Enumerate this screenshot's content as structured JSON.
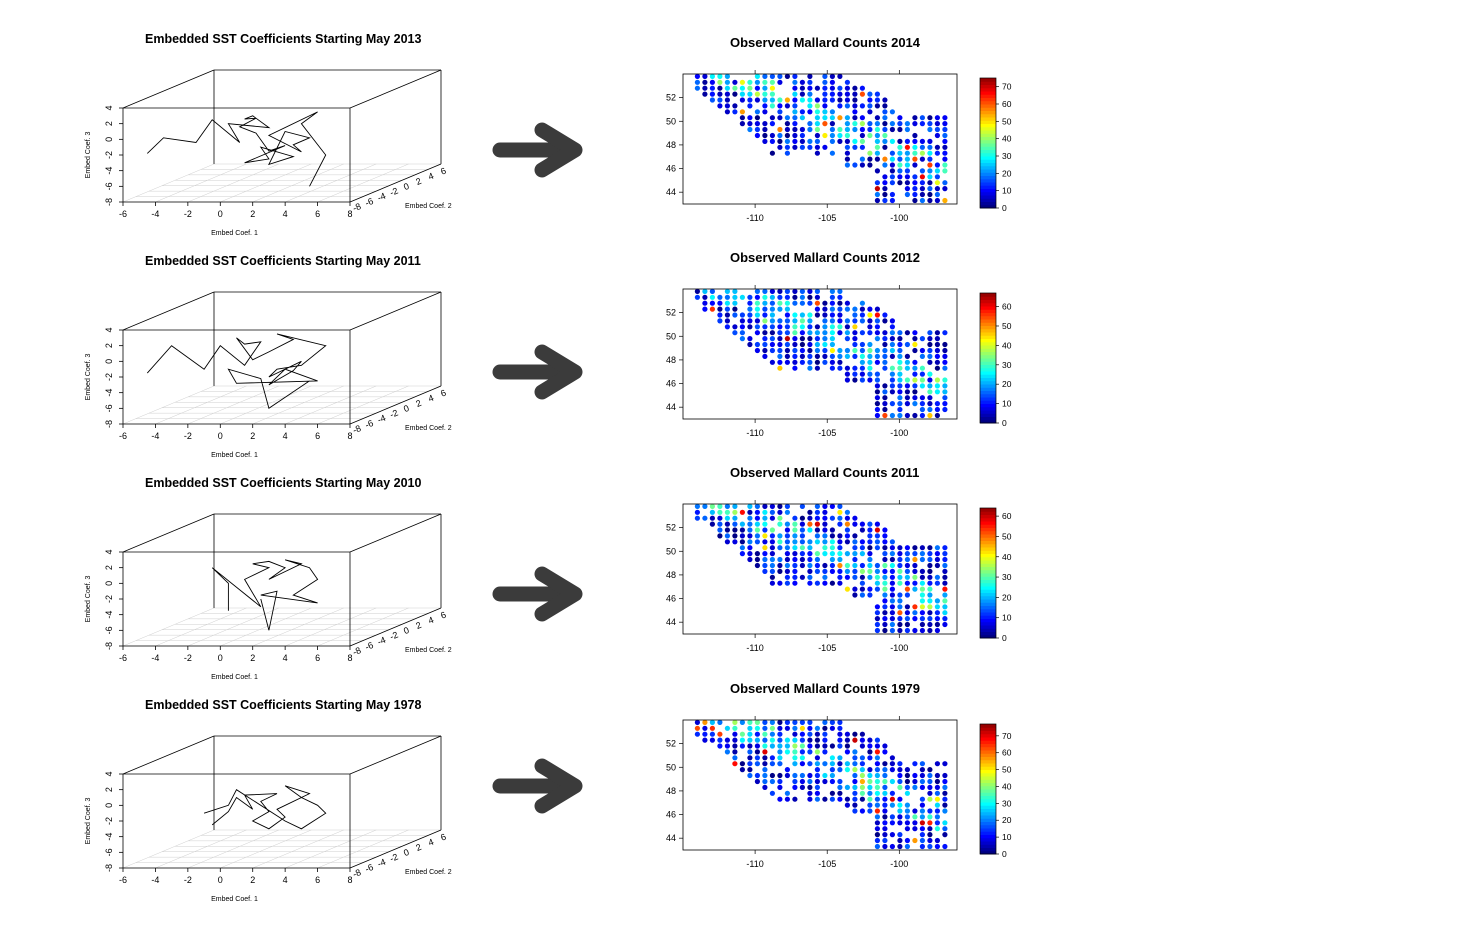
{
  "panels": [
    {
      "embed_title": "Embedded SST Coefficients Starting May  2013",
      "map_title": "Observed Mallard Counts  2014",
      "colorbar_ticks": [
        "0",
        "10",
        "20",
        "30",
        "40",
        "50",
        "60",
        "70"
      ],
      "colorbar_max": 75,
      "path": [
        [
          -4.5,
          -1.8
        ],
        [
          -3.5,
          0.2
        ],
        [
          -1.5,
          -0.4
        ],
        [
          -0.5,
          2.5
        ],
        [
          1.2,
          -0.4
        ],
        [
          0.5,
          2.0
        ],
        [
          3.0,
          1.5
        ],
        [
          2.0,
          3.0
        ],
        [
          1.5,
          2.6
        ],
        [
          2.2,
          2.7
        ],
        [
          1.2,
          1.6
        ],
        [
          2.2,
          0.8
        ],
        [
          3.0,
          -1.5
        ],
        [
          4.0,
          -0.8
        ],
        [
          1.5,
          -3.0
        ],
        [
          3.0,
          -2.5
        ],
        [
          2.5,
          -1.0
        ],
        [
          4.5,
          -2.2
        ],
        [
          3.0,
          -3.2
        ],
        [
          4.0,
          1.0
        ],
        [
          5.5,
          0.2
        ],
        [
          4.5,
          -0.7
        ],
        [
          5.0,
          -1.6
        ],
        [
          3.0,
          0.5
        ],
        [
          6.0,
          3.5
        ],
        [
          5.0,
          2.0
        ],
        [
          6.5,
          -2.0
        ],
        [
          5.5,
          -6.0
        ]
      ]
    },
    {
      "embed_title": "Embedded SST Coefficients Starting May  2011",
      "map_title": "Observed Mallard Counts  2012",
      "colorbar_ticks": [
        "0",
        "10",
        "20",
        "30",
        "40",
        "50",
        "60"
      ],
      "colorbar_max": 67,
      "path": [
        [
          -4.5,
          -1.5
        ],
        [
          -3.0,
          2.0
        ],
        [
          -1.0,
          -1.0
        ],
        [
          0.0,
          2.0
        ],
        [
          1.5,
          -0.5
        ],
        [
          2.5,
          2.5
        ],
        [
          1.5,
          2.2
        ],
        [
          1.0,
          3.0
        ],
        [
          2.0,
          0.2
        ],
        [
          3.0,
          1.2
        ],
        [
          4.5,
          2.8
        ],
        [
          3.5,
          3.5
        ],
        [
          6.5,
          2.0
        ],
        [
          5.0,
          -0.5
        ],
        [
          3.5,
          -1.0
        ],
        [
          3.0,
          -2.0
        ],
        [
          5.0,
          0.0
        ],
        [
          4.5,
          -1.2
        ],
        [
          3.0,
          -3.0
        ],
        [
          4.0,
          -1.0
        ],
        [
          6.0,
          -2.5
        ],
        [
          1.0,
          -2.8
        ],
        [
          0.5,
          -1.0
        ],
        [
          2.5,
          -2.2
        ],
        [
          3.0,
          -6.0
        ],
        [
          5.5,
          -2.5
        ]
      ]
    },
    {
      "embed_title": "Embedded SST Coefficients Starting May  2010",
      "map_title": "Observed Mallard Counts  2011",
      "colorbar_ticks": [
        "0",
        "10",
        "20",
        "30",
        "40",
        "50",
        "60"
      ],
      "colorbar_max": 64,
      "path": [
        [
          0.5,
          -3.5
        ],
        [
          0.5,
          0.0
        ],
        [
          -0.5,
          2.0
        ],
        [
          2.5,
          -3.0
        ],
        [
          1.5,
          0.5
        ],
        [
          3.0,
          2.0
        ],
        [
          2.0,
          2.5
        ],
        [
          3.0,
          2.8
        ],
        [
          4.0,
          2.0
        ],
        [
          3.0,
          0.5
        ],
        [
          5.0,
          2.5
        ],
        [
          4.0,
          3.0
        ],
        [
          5.5,
          2.0
        ],
        [
          6.0,
          0.5
        ],
        [
          4.5,
          -1.5
        ],
        [
          6.0,
          -2.5
        ],
        [
          2.5,
          -1.5
        ],
        [
          3.5,
          -1.0
        ],
        [
          3.0,
          -6.0
        ],
        [
          2.5,
          -2.0
        ]
      ]
    },
    {
      "embed_title": "Embedded SST Coefficients Starting May  1978",
      "map_title": "Observed Mallard Counts  1979",
      "colorbar_ticks": [
        "0",
        "10",
        "20",
        "30",
        "40",
        "50",
        "60",
        "70"
      ],
      "colorbar_max": 77,
      "path": [
        [
          -0.5,
          -2.5
        ],
        [
          0.5,
          -0.8
        ],
        [
          1.0,
          1.0
        ],
        [
          2.0,
          -0.5
        ],
        [
          1.5,
          1.3
        ],
        [
          3.5,
          1.5
        ],
        [
          2.5,
          0.5
        ],
        [
          3.0,
          -0.8
        ],
        [
          2.0,
          -2.0
        ],
        [
          3.0,
          -3.0
        ],
        [
          4.0,
          -1.5
        ],
        [
          3.5,
          -0.5
        ],
        [
          5.5,
          1.5
        ],
        [
          4.0,
          2.5
        ],
        [
          5.0,
          1.0
        ],
        [
          6.0,
          0.0
        ],
        [
          6.5,
          -1.0
        ],
        [
          5.0,
          -3.0
        ],
        [
          4.0,
          -2.0
        ],
        [
          1.0,
          2.0
        ],
        [
          0.5,
          0.0
        ],
        [
          -1.0,
          -1.0
        ]
      ]
    }
  ],
  "axes3d": {
    "xlabel": "Embed Coef. 1",
    "ylabel": "Embed Coef. 2",
    "zlabel": "Embed Coef. 3",
    "x_ticks": [
      "-6",
      "-4",
      "-2",
      "0",
      "2",
      "4",
      "6",
      "8"
    ],
    "z_ticks": [
      "-8",
      "-6",
      "-4",
      "-2",
      "0",
      "2",
      "4"
    ],
    "y_ticks": [
      "-8",
      "-6",
      "-4",
      "-2",
      "0",
      "2",
      "4",
      "6"
    ]
  },
  "map_axes": {
    "x_ticks": [
      "-110",
      "-105",
      "-100"
    ],
    "y_ticks": [
      "44",
      "46",
      "48",
      "50",
      "52"
    ]
  },
  "chart_data": [
    {
      "type": "line",
      "title": "Embedded SST Coefficients Starting May  2013",
      "xlabel": "Embed Coef. 1",
      "ylabel": "Embed Coef. 3",
      "xlim": [
        -6,
        8
      ],
      "ylim": [
        -8,
        4
      ]
    },
    {
      "type": "scatter",
      "title": "Observed Mallard Counts  2014",
      "xlim": [
        -115,
        -96
      ],
      "ylim": [
        43,
        54
      ],
      "color_range": [
        0,
        75
      ]
    },
    {
      "type": "line",
      "title": "Embedded SST Coefficients Starting May  2011",
      "xlabel": "Embed Coef. 1",
      "ylabel": "Embed Coef. 3",
      "xlim": [
        -6,
        8
      ],
      "ylim": [
        -8,
        4
      ]
    },
    {
      "type": "scatter",
      "title": "Observed Mallard Counts  2012",
      "xlim": [
        -115,
        -96
      ],
      "ylim": [
        43,
        54
      ],
      "color_range": [
        0,
        67
      ]
    },
    {
      "type": "line",
      "title": "Embedded SST Coefficients Starting May  2010",
      "xlabel": "Embed Coef. 1",
      "ylabel": "Embed Coef. 3",
      "xlim": [
        -6,
        8
      ],
      "ylim": [
        -8,
        4
      ]
    },
    {
      "type": "scatter",
      "title": "Observed Mallard Counts  2011",
      "xlim": [
        -115,
        -96
      ],
      "ylim": [
        43,
        54
      ],
      "color_range": [
        0,
        64
      ]
    },
    {
      "type": "line",
      "title": "Embedded SST Coefficients Starting May  1978",
      "xlabel": "Embed Coef. 1",
      "ylabel": "Embed Coef. 3",
      "xlim": [
        -6,
        8
      ],
      "ylim": [
        -8,
        4
      ]
    },
    {
      "type": "scatter",
      "title": "Observed Mallard Counts  1979",
      "xlim": [
        -115,
        -96
      ],
      "ylim": [
        43,
        54
      ],
      "color_range": [
        0,
        77
      ]
    }
  ]
}
